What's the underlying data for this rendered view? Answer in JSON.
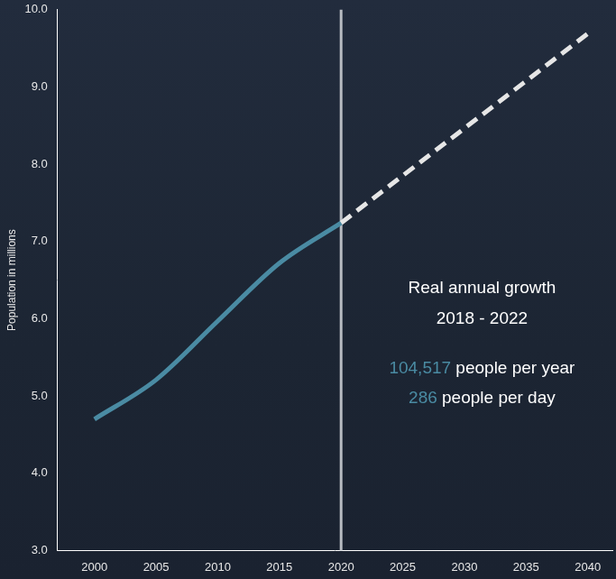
{
  "chart_data": {
    "type": "line",
    "y_label": "Population in millions",
    "x": [
      2000,
      2005,
      2010,
      2015,
      2020,
      2040
    ],
    "series": [
      {
        "color": "#4a8ba3",
        "line_style": "solid",
        "values": [
          4.7,
          5.21,
          5.97,
          6.72,
          7.24,
          null
        ]
      },
      {
        "color": "#e6e6e6",
        "line_style": "dashed",
        "values": [
          null,
          null,
          null,
          null,
          7.24,
          9.69
        ]
      }
    ],
    "vertical_line": 2020,
    "xlim": [
      1997,
      2042
    ],
    "xticks": [
      2000,
      2005,
      2010,
      2015,
      2020,
      2025,
      2030,
      2035,
      2040
    ],
    "ylim": [
      3,
      10
    ],
    "yticks": [
      {
        "value": 3,
        "label": "3.0"
      },
      {
        "value": 4,
        "label": "4.0"
      },
      {
        "value": 5,
        "label": "5.0"
      },
      {
        "value": 6,
        "label": "6.0"
      },
      {
        "value": 7,
        "label": "7.0"
      },
      {
        "value": 8,
        "label": "8.0"
      },
      {
        "value": 9,
        "label": "9.0"
      },
      {
        "value": 10,
        "label": "10.0"
      }
    ],
    "grid": false,
    "annotations": [
      {
        "text": "Real annual growth"
      },
      {
        "text": "2018 - 2022"
      },
      {
        "value": 104517,
        "label": "104,517",
        "text": "people per year",
        "color": "#4a8ba3"
      },
      {
        "value": 286,
        "label": "286",
        "text": "people per day",
        "color": "#4a8ba3"
      }
    ]
  }
}
